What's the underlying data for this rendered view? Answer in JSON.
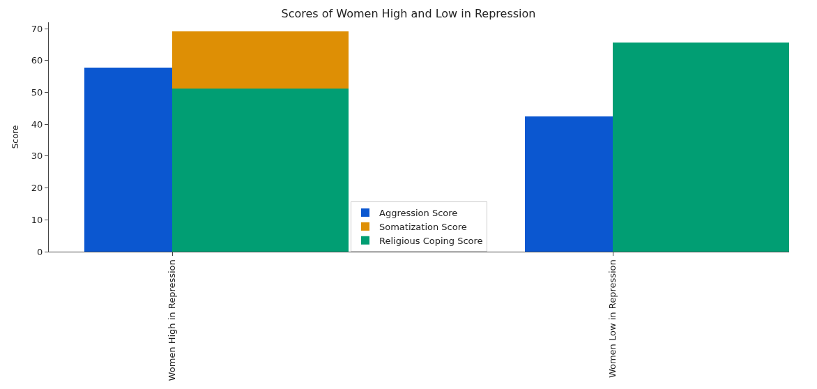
{
  "chart_data": {
    "type": "bar",
    "title": "Scores of Women High and Low in Repression",
    "ylabel": "Score",
    "categories": [
      "Women High in Repression",
      "Women Low in Repression"
    ],
    "ylim": [
      0,
      72
    ],
    "yticks": [
      0,
      10,
      20,
      30,
      40,
      50,
      60,
      70
    ],
    "legend": "bottom",
    "series": [
      {
        "name": "Aggression Score",
        "color": "#0b57d0",
        "values": [
          57.8,
          42.5
        ]
      },
      {
        "name": "Somatization Score",
        "color": "#de8f05",
        "base": [
          51.2,
          null
        ],
        "values": [
          17.9,
          null
        ]
      },
      {
        "name": "Religious Coping Score",
        "color": "#019e73",
        "values": [
          51.2,
          65.7
        ]
      }
    ]
  }
}
